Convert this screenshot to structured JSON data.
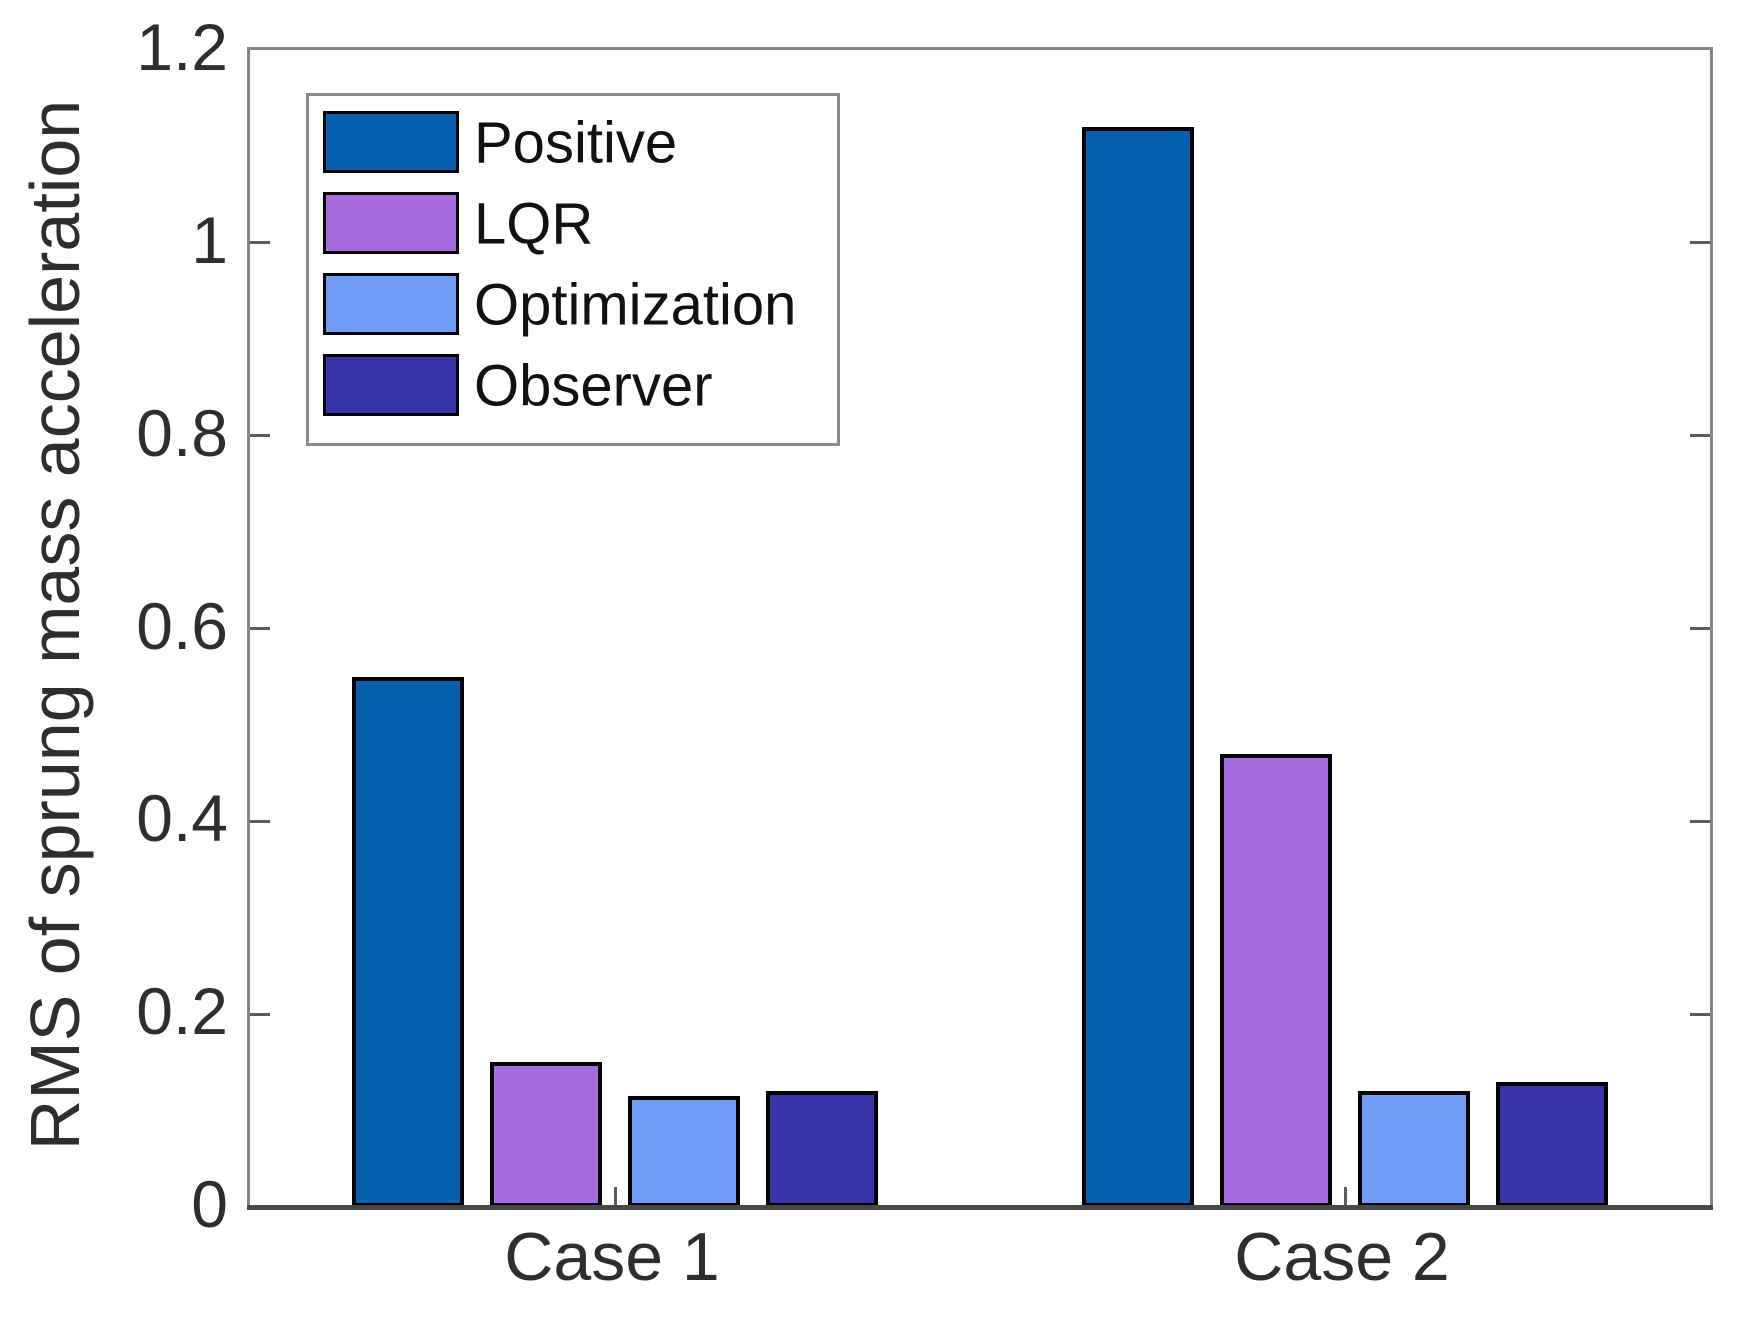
{
  "chart_data": {
    "type": "bar",
    "title": "",
    "xlabel": "",
    "ylabel": "RMS of sprung mass acceleration",
    "categories": [
      "Case 1",
      "Case 2"
    ],
    "series": [
      {
        "name": "Positive",
        "color": "#0561AD",
        "values": [
          0.55,
          1.12
        ]
      },
      {
        "name": "LQR",
        "color": "#AA6BE0",
        "values": [
          0.15,
          0.47
        ]
      },
      {
        "name": "Optimization",
        "color": "#709CF5",
        "values": [
          0.115,
          0.12
        ]
      },
      {
        "name": "Observer",
        "color": "#3634A8",
        "values": [
          0.12,
          0.13
        ]
      }
    ],
    "ylim": [
      0,
      1.2
    ],
    "yticks": [
      0,
      0.2,
      0.4,
      0.6,
      0.8,
      1,
      1.2
    ],
    "ytick_labels": [
      "0",
      "0.2",
      "0.4",
      "0.6",
      "0.8",
      "1",
      "1.2"
    ],
    "grid": false,
    "legend_position": "top-left",
    "bar_edge_color": "#000000",
    "axis_box_color": "#848484",
    "text_color": "#2e2e2e"
  }
}
